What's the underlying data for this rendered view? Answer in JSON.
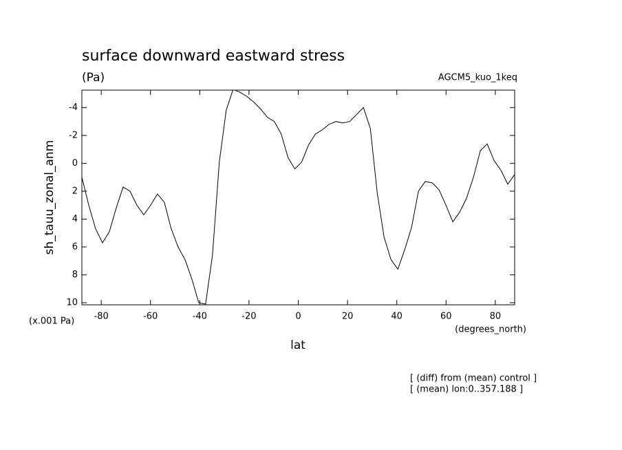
{
  "chart_data": {
    "type": "line",
    "title": "surface downward eastward stress",
    "subtitle": "(Pa)",
    "experiment": "AGCM5_kuo_1keq",
    "ylabel": "sh_tauu_zonal_anm",
    "yunits": "(x.001 Pa)",
    "xunits": "(degrees_north)",
    "xlabel": "lat",
    "notes": [
      "[ (diff) from (mean) control ]",
      "[ (mean) lon:0..357.188 ]"
    ],
    "xlim": [
      -87.86,
      87.86
    ],
    "ylim": [
      10.15,
      -5.25
    ],
    "xticks": [
      -80,
      -60,
      -40,
      -20,
      0,
      20,
      40,
      60,
      80
    ],
    "yticks": [
      -4,
      -2,
      0,
      2,
      4,
      6,
      8,
      10
    ],
    "x": [
      -87.86,
      -85.07,
      -82.28,
      -79.49,
      -76.7,
      -73.91,
      -71.12,
      -68.33,
      -65.54,
      -62.75,
      -59.95,
      -57.16,
      -54.37,
      -51.58,
      -48.79,
      -46.0,
      -43.21,
      -40.42,
      -37.63,
      -34.84,
      -32.05,
      -29.26,
      -26.47,
      -23.68,
      -20.88,
      -18.09,
      -15.3,
      -12.51,
      -9.72,
      -6.93,
      -4.14,
      -1.4,
      1.4,
      4.14,
      6.93,
      9.72,
      12.51,
      15.3,
      18.09,
      20.88,
      23.68,
      26.47,
      29.26,
      32.05,
      34.84,
      37.63,
      40.42,
      43.21,
      46.0,
      48.79,
      51.58,
      54.37,
      57.16,
      59.95,
      62.75,
      65.54,
      68.33,
      71.12,
      73.91,
      76.7,
      79.49,
      82.28,
      85.07,
      87.86
    ],
    "series": [
      {
        "name": "sh_tauu_zonal_anm",
        "color": "#000000",
        "values": [
          1.0,
          3.0,
          4.7,
          5.7,
          4.9,
          3.2,
          1.7,
          2.0,
          3.0,
          3.7,
          3.0,
          2.2,
          2.8,
          4.7,
          6.0,
          6.9,
          8.3,
          10.0,
          10.1,
          6.6,
          -0.1,
          -3.8,
          -5.3,
          -5.1,
          -4.8,
          -4.4,
          -3.9,
          -3.3,
          -3.0,
          -2.1,
          -0.4,
          0.4,
          -0.1,
          -1.3,
          -2.1,
          -2.4,
          -2.8,
          -3.0,
          -2.9,
          -3.0,
          -3.5,
          -4.0,
          -2.5,
          2.1,
          5.3,
          6.9,
          7.6,
          6.2,
          4.6,
          2.0,
          1.3,
          1.4,
          1.9,
          3.0,
          4.2,
          3.5,
          2.5,
          1.0,
          -0.9,
          -1.4,
          -0.2,
          0.5,
          1.5,
          0.8
        ]
      }
    ]
  }
}
